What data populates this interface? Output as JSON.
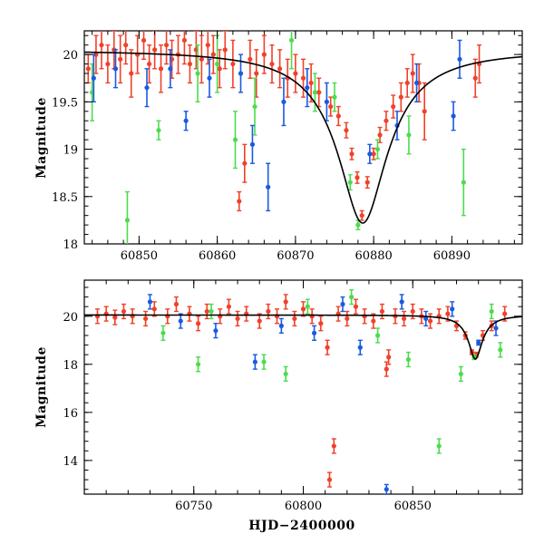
{
  "colors": {
    "red": "#f0412a",
    "green": "#4ddc4d",
    "blue": "#1a5ae0",
    "model": "#000000"
  },
  "chart_data": [
    {
      "type": "scatter",
      "title": "",
      "xlabel": "",
      "ylabel": "Magnitude",
      "xlim": [
        60843,
        60899
      ],
      "ylim": [
        20.25,
        18
      ],
      "y_inverted": true,
      "grid": false,
      "x_ticks": [
        60850,
        60860,
        60870,
        60880,
        60890
      ],
      "y_ticks": [
        18,
        18.5,
        19,
        19.5,
        20
      ],
      "x_tick_labels": [
        "60850",
        "60860",
        "60870",
        "60880",
        "60890"
      ],
      "y_tick_labels": [
        "18",
        "18.5",
        "19",
        "19.5",
        "20"
      ],
      "model_curve": {
        "type": "lorentzian",
        "t0": 60878.6,
        "peak_mag": 18.22,
        "base_mag": 20.05,
        "width": 2.6
      },
      "series": [
        {
          "color": "red",
          "points": [
            [
              60843.5,
              19.85,
              0.15
            ],
            [
              60844.5,
              20.0,
              0.2
            ],
            [
              60845.2,
              20.1,
              0.25
            ],
            [
              60846.0,
              19.9,
              0.2
            ],
            [
              60846.8,
              20.05,
              0.2
            ],
            [
              60847.6,
              19.95,
              0.25
            ],
            [
              60848.3,
              20.1,
              0.2
            ],
            [
              60849.0,
              19.8,
              0.25
            ],
            [
              60849.8,
              20.0,
              0.2
            ],
            [
              60850.6,
              20.15,
              0.2
            ],
            [
              60851.3,
              19.9,
              0.2
            ],
            [
              60852.0,
              20.05,
              0.2
            ],
            [
              60852.8,
              19.85,
              0.25
            ],
            [
              60853.5,
              20.1,
              0.2
            ],
            [
              60854.2,
              19.95,
              0.2
            ],
            [
              60855.0,
              20.0,
              0.2
            ],
            [
              60855.8,
              20.15,
              0.25
            ],
            [
              60856.5,
              19.9,
              0.2
            ],
            [
              60857.3,
              20.05,
              0.2
            ],
            [
              60858.0,
              19.95,
              0.25
            ],
            [
              60858.8,
              20.1,
              0.2
            ],
            [
              60859.5,
              20.0,
              0.2
            ],
            [
              60860.3,
              19.85,
              0.2
            ],
            [
              60861.0,
              20.05,
              0.2
            ],
            [
              60862.0,
              19.9,
              0.25
            ],
            [
              60862.8,
              18.45,
              0.1
            ],
            [
              60863.5,
              18.85,
              0.2
            ],
            [
              60864.2,
              19.95,
              0.2
            ],
            [
              60865.0,
              19.8,
              0.25
            ],
            [
              60866.0,
              20.0,
              0.2
            ],
            [
              60867.0,
              19.9,
              0.2
            ],
            [
              60868.0,
              19.85,
              0.2
            ],
            [
              60869.0,
              19.75,
              0.2
            ],
            [
              60870.0,
              19.8,
              0.2
            ],
            [
              60871.0,
              19.75,
              0.2
            ],
            [
              60872.0,
              19.7,
              0.2
            ],
            [
              60873.0,
              19.6,
              0.15
            ],
            [
              60874.5,
              19.45,
              0.1
            ],
            [
              60875.5,
              19.35,
              0.1
            ],
            [
              60876.5,
              19.2,
              0.08
            ],
            [
              60877.2,
              18.95,
              0.06
            ],
            [
              60877.9,
              18.7,
              0.06
            ],
            [
              60878.5,
              18.3,
              0.05
            ],
            [
              60879.2,
              18.65,
              0.06
            ],
            [
              60880.0,
              18.95,
              0.06
            ],
            [
              60880.8,
              19.15,
              0.08
            ],
            [
              60881.6,
              19.3,
              0.1
            ],
            [
              60882.5,
              19.45,
              0.12
            ],
            [
              60883.5,
              19.55,
              0.15
            ],
            [
              60884.3,
              19.7,
              0.15
            ],
            [
              60885.0,
              19.8,
              0.2
            ],
            [
              60885.8,
              19.7,
              0.2
            ],
            [
              60886.5,
              19.4,
              0.3
            ],
            [
              60893.0,
              19.75,
              0.2
            ],
            [
              60893.5,
              19.9,
              0.2
            ]
          ]
        },
        {
          "color": "green",
          "points": [
            [
              60844.0,
              19.6,
              0.3
            ],
            [
              60848.5,
              18.25,
              0.3
            ],
            [
              60852.5,
              19.2,
              0.1
            ],
            [
              60857.5,
              19.8,
              0.3
            ],
            [
              60860.0,
              19.9,
              0.3
            ],
            [
              60862.3,
              19.1,
              0.3
            ],
            [
              60864.8,
              19.45,
              0.3
            ],
            [
              60869.5,
              20.15,
              0.3
            ],
            [
              60872.5,
              19.6,
              0.2
            ],
            [
              60875.0,
              19.55,
              0.15
            ],
            [
              60877.0,
              18.65,
              0.08
            ],
            [
              60878.0,
              18.2,
              0.05
            ],
            [
              60880.5,
              19.0,
              0.1
            ],
            [
              60884.5,
              19.15,
              0.2
            ],
            [
              60891.5,
              18.65,
              0.35
            ]
          ]
        },
        {
          "color": "blue",
          "points": [
            [
              60844.2,
              19.75,
              0.25
            ],
            [
              60847.0,
              19.85,
              0.2
            ],
            [
              60851.0,
              19.65,
              0.2
            ],
            [
              60854.0,
              19.85,
              0.2
            ],
            [
              60856.0,
              19.3,
              0.1
            ],
            [
              60859.0,
              19.75,
              0.2
            ],
            [
              60863.0,
              19.8,
              0.2
            ],
            [
              60864.5,
              19.05,
              0.2
            ],
            [
              60866.5,
              18.6,
              0.25
            ],
            [
              60868.5,
              19.5,
              0.25
            ],
            [
              60871.5,
              19.65,
              0.2
            ],
            [
              60874.0,
              19.5,
              0.2
            ],
            [
              60879.5,
              18.95,
              0.1
            ],
            [
              60883.0,
              19.25,
              0.15
            ],
            [
              60885.5,
              19.7,
              0.2
            ],
            [
              60890.2,
              19.35,
              0.15
            ],
            [
              60891.0,
              19.95,
              0.2
            ]
          ]
        }
      ]
    },
    {
      "type": "scatter",
      "title": "",
      "xlabel": "HJD−2400000",
      "ylabel": "Magnitude",
      "xlim": [
        60700,
        60900
      ],
      "ylim": [
        21.5,
        12.6
      ],
      "y_inverted": true,
      "grid": false,
      "x_ticks": [
        60750,
        60800,
        60850
      ],
      "y_ticks": [
        14,
        16,
        18,
        20
      ],
      "x_tick_labels": [
        "60750",
        "60800",
        "60850"
      ],
      "y_tick_labels": [
        "14",
        "16",
        "18",
        "20"
      ],
      "model_curve": {
        "type": "lorentzian",
        "t0": 60878.6,
        "peak_mag": 18.22,
        "base_mag": 20.05,
        "width": 2.6
      },
      "series": [
        {
          "color": "red",
          "points": [
            [
              60706,
              20.0,
              0.3
            ],
            [
              60710,
              20.1,
              0.3
            ],
            [
              60714,
              19.95,
              0.3
            ],
            [
              60718,
              20.2,
              0.3
            ],
            [
              60722,
              20.0,
              0.3
            ],
            [
              60728,
              19.9,
              0.3
            ],
            [
              60732,
              20.3,
              0.3
            ],
            [
              60738,
              20.0,
              0.3
            ],
            [
              60742,
              20.5,
              0.3
            ],
            [
              60748,
              20.1,
              0.3
            ],
            [
              60752,
              19.7,
              0.3
            ],
            [
              60756,
              20.2,
              0.3
            ],
            [
              60762,
              20.0,
              0.3
            ],
            [
              60766,
              20.4,
              0.3
            ],
            [
              60770,
              19.9,
              0.3
            ],
            [
              60774,
              20.1,
              0.3
            ],
            [
              60780,
              19.8,
              0.3
            ],
            [
              60784,
              20.2,
              0.3
            ],
            [
              60788,
              20.0,
              0.3
            ],
            [
              60792,
              20.6,
              0.3
            ],
            [
              60796,
              19.9,
              0.3
            ],
            [
              60800,
              20.3,
              0.3
            ],
            [
              60804,
              20.0,
              0.3
            ],
            [
              60808,
              19.7,
              0.3
            ],
            [
              60811,
              18.7,
              0.3
            ],
            [
              60812,
              13.2,
              0.3
            ],
            [
              60814,
              14.6,
              0.3
            ],
            [
              60816,
              20.1,
              0.3
            ],
            [
              60820,
              19.9,
              0.3
            ],
            [
              60824,
              20.4,
              0.3
            ],
            [
              60828,
              20.0,
              0.3
            ],
            [
              60832,
              19.8,
              0.3
            ],
            [
              60836,
              20.2,
              0.3
            ],
            [
              60838,
              17.8,
              0.3
            ],
            [
              60839,
              18.3,
              0.3
            ],
            [
              60842,
              20.0,
              0.3
            ],
            [
              60846,
              19.9,
              0.3
            ],
            [
              60850,
              20.2,
              0.3
            ],
            [
              60854,
              20.0,
              0.3
            ],
            [
              60858,
              19.8,
              0.3
            ],
            [
              60862,
              20.0,
              0.3
            ],
            [
              60866,
              20.1,
              0.3
            ],
            [
              60870,
              19.6,
              0.2
            ],
            [
              60874,
              19.2,
              0.15
            ],
            [
              60877,
              18.5,
              0.1
            ],
            [
              60879,
              18.4,
              0.1
            ],
            [
              60882,
              19.2,
              0.2
            ],
            [
              60886,
              19.6,
              0.2
            ],
            [
              60892,
              20.1,
              0.3
            ]
          ]
        },
        {
          "color": "green",
          "points": [
            [
              60736,
              19.3,
              0.3
            ],
            [
              60752,
              18.0,
              0.3
            ],
            [
              60758,
              20.2,
              0.3
            ],
            [
              60782,
              18.1,
              0.3
            ],
            [
              60792,
              17.6,
              0.3
            ],
            [
              60802,
              20.4,
              0.3
            ],
            [
              60822,
              20.8,
              0.3
            ],
            [
              60834,
              19.2,
              0.3
            ],
            [
              60848,
              18.2,
              0.3
            ],
            [
              60862,
              14.6,
              0.3
            ],
            [
              60872,
              17.6,
              0.3
            ],
            [
              60878,
              18.3,
              0.1
            ],
            [
              60886,
              20.2,
              0.3
            ],
            [
              60890,
              18.6,
              0.3
            ]
          ]
        },
        {
          "color": "blue",
          "points": [
            [
              60730,
              20.6,
              0.3
            ],
            [
              60744,
              19.8,
              0.3
            ],
            [
              60760,
              19.4,
              0.3
            ],
            [
              60778,
              18.1,
              0.3
            ],
            [
              60790,
              19.6,
              0.3
            ],
            [
              60805,
              19.3,
              0.3
            ],
            [
              60818,
              20.5,
              0.3
            ],
            [
              60826,
              18.7,
              0.3
            ],
            [
              60838,
              12.8,
              0.2
            ],
            [
              60845,
              20.6,
              0.3
            ],
            [
              60856,
              19.9,
              0.3
            ],
            [
              60868,
              20.3,
              0.3
            ],
            [
              60880,
              18.9,
              0.1
            ],
            [
              60888,
              19.5,
              0.3
            ]
          ]
        }
      ]
    }
  ]
}
